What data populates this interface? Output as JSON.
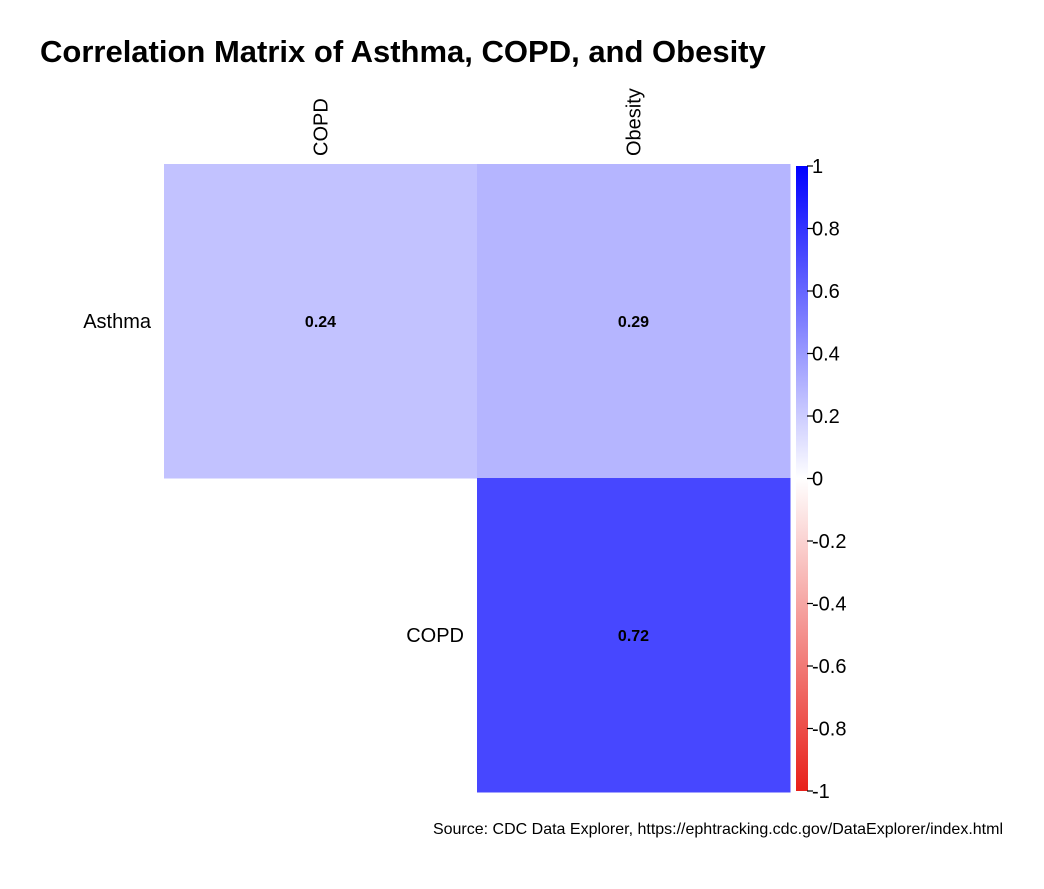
{
  "chart_data": {
    "type": "heatmap",
    "title": "Correlation Matrix of Asthma, COPD, and Obesity",
    "caption": "Source: CDC Data Explorer, https://ephtracking.cdc.gov/DataExplorer/index.html",
    "columns": [
      "COPD",
      "Obesity"
    ],
    "rows": [
      "Asthma",
      "COPD"
    ],
    "cells": [
      {
        "row": "Asthma",
        "col": "COPD",
        "value": 0.24,
        "label": "0.24"
      },
      {
        "row": "Asthma",
        "col": "Obesity",
        "value": 0.29,
        "label": "0.29"
      },
      {
        "row": "COPD",
        "col": "Obesity",
        "value": 0.72,
        "label": "0.72"
      }
    ],
    "colorbar": {
      "range": [
        -1,
        1
      ],
      "ticks": [
        1,
        0.8,
        0.6,
        0.4,
        0.2,
        0,
        -0.2,
        -0.4,
        -0.6,
        -0.8,
        -1
      ],
      "tick_labels": [
        "1",
        "0.8",
        "0.6",
        "0.4",
        "0.2",
        "0",
        "-0.2",
        "-0.4",
        "-0.6",
        "-0.8",
        "-1"
      ],
      "colors": {
        "low": "#e8201a",
        "mid": "#ffffff",
        "high": "#0000ff"
      }
    }
  }
}
